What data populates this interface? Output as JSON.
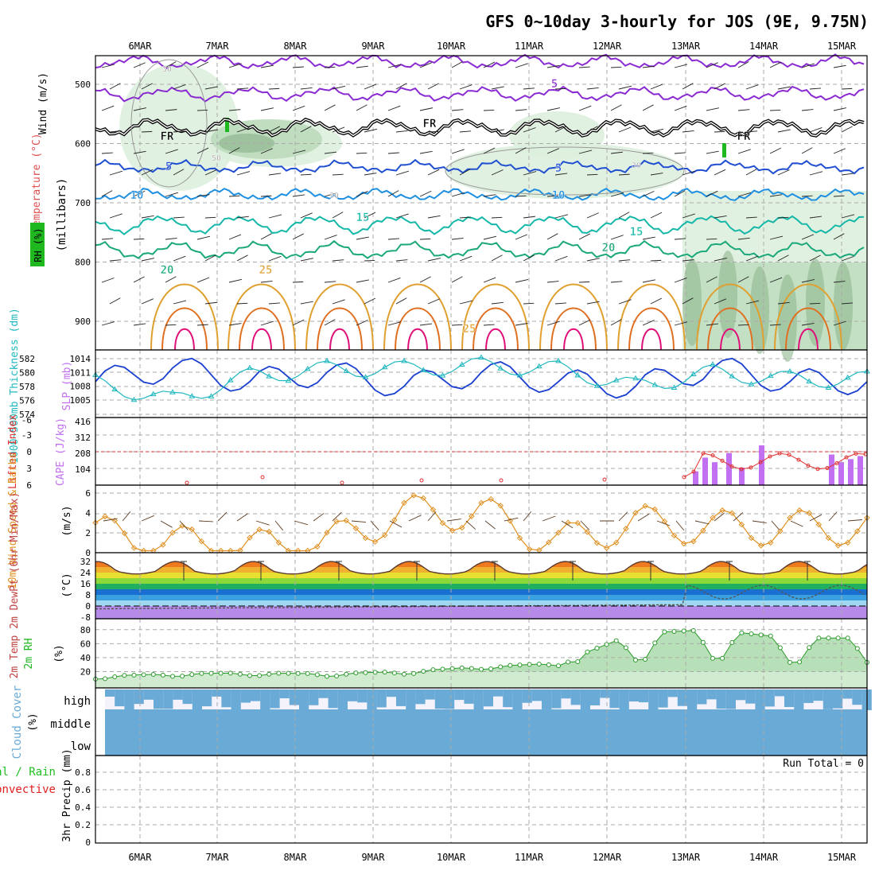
{
  "title": "GFS 0~10day 3-hourly for JOS (9E, 9.75N)",
  "date_labels": [
    "6MAR",
    "7MAR",
    "8MAR",
    "9MAR",
    "10MAR",
    "11MAR",
    "12MAR",
    "13MAR",
    "14MAR",
    "15MAR"
  ],
  "colors": {
    "grid": "#aaaaaa",
    "purple": "#8a2bd2",
    "black": "#000000",
    "blue5": "#1f4fd0",
    "blue10": "#1f8fe0",
    "teal15": "#15b8a8",
    "green20": "#1aa87a",
    "orange25": "#e0a030",
    "orange30": "#e07020",
    "magenta": "#e0107a",
    "rh": "#1fb81f",
    "slp": "#1a3fd0",
    "thick": "#20b8c0",
    "li": "#e03030",
    "cape": "#c070f0",
    "wind": "#e09020",
    "rh2m": "#2a9a2a",
    "cloud": "#6aaad6",
    "precip_total": "#20c020",
    "precip_conv": "#e02020"
  },
  "panels": {
    "upper": {
      "ylabels": {
        "wind": "Wind (m/s)",
        "temp": "Temperature (°C)",
        "rh": "RH (%)",
        "mb": "(millibars)"
      },
      "ticks": [
        "500",
        "600",
        "700",
        "800",
        "900"
      ],
      "contour_labels": [
        {
          "text": "5",
          "key": "purple"
        },
        {
          "text": "FR",
          "key": "black"
        },
        {
          "text": "FR",
          "key": "black"
        },
        {
          "text": "FR",
          "key": "black"
        },
        {
          "text": "5",
          "key": "blue5"
        },
        {
          "text": "5",
          "key": "blue5"
        },
        {
          "text": "10",
          "key": "blue10"
        },
        {
          "text": "10",
          "key": "blue10"
        },
        {
          "text": "15",
          "key": "teal15"
        },
        {
          "text": "15",
          "key": "teal15"
        },
        {
          "text": "20",
          "key": "green20"
        },
        {
          "text": "20",
          "key": "green20"
        },
        {
          "text": "25",
          "key": "orange25"
        },
        {
          "text": "25",
          "key": "orange25"
        },
        {
          "text": "30",
          "key": "grid"
        },
        {
          "text": "50",
          "key": "grid"
        },
        {
          "text": "30",
          "key": "grid"
        },
        {
          "text": "30",
          "key": "grid"
        }
      ]
    },
    "thickness": {
      "ylabel_left": "1000~500mb Thickness (dm)",
      "ylabel_right": "SLP (mb)",
      "left_ticks": [
        "574",
        "576",
        "578",
        "580",
        "582"
      ],
      "right_ticks": [
        "1005",
        "1008",
        "1011",
        "1014"
      ]
    },
    "cape": {
      "ylabel_left": "Lifted Index",
      "ylabel_right": "CAPE (J/kg)",
      "li_ticks": [
        "6",
        "3",
        "0",
        "-3",
        "-6"
      ],
      "cape_ticks": [
        "104",
        "208",
        "312",
        "416"
      ]
    },
    "wind10m": {
      "ylabel": "10m Wind Speed & Barbs",
      "unit": "(m/s)",
      "ticks": [
        "0",
        "2",
        "4",
        "6"
      ]
    },
    "temp2m": {
      "ylabel": "2m Temp 2m DewPt (6hr Min/Max)",
      "unit": "(°C)",
      "ticks": [
        "-8",
        "0",
        "8",
        "16",
        "24",
        "32"
      ]
    },
    "rh2m": {
      "ylabel": "2m RH",
      "unit": "(%)",
      "ticks": [
        "20",
        "40",
        "60",
        "80"
      ]
    },
    "cloud": {
      "ylabel": "Cloud Cover",
      "unit": "(%)",
      "levels": [
        "high",
        "middle",
        "low"
      ]
    },
    "precip": {
      "ylabel_a": "Total / Rain",
      "ylabel_b": "Convective",
      "ylabel_c": "3hr Precip (mm)",
      "ticks": [
        "0",
        "0.2",
        "0.4",
        "0.6",
        "0.8"
      ],
      "run_total": "Run Total = 0"
    }
  },
  "chart_data": [
    {
      "type": "line",
      "title": "1000~500mb Thickness / SLP",
      "x": [
        "6MAR",
        "7MAR",
        "8MAR",
        "9MAR",
        "10MAR",
        "11MAR",
        "12MAR",
        "13MAR",
        "14MAR",
        "15MAR"
      ],
      "series": [
        {
          "name": "SLP (mb)",
          "values": [
            1009,
            1012,
            1009,
            1011,
            1008,
            1011,
            1009,
            1008,
            1012,
            1009
          ]
        },
        {
          "name": "1000~500mb Thickness (dm)",
          "values": [
            578.5,
            576,
            579.5,
            580.5,
            580.5,
            581,
            580.5,
            578,
            580,
            579
          ]
        }
      ]
    },
    {
      "type": "bar",
      "title": "CAPE (J/kg)",
      "categories": [
        "13MAR",
        "13MAR",
        "13MAR",
        "14MAR",
        "14MAR",
        "14MAR",
        "15MAR",
        "15MAR"
      ],
      "values": [
        104,
        208,
        156,
        260,
        312,
        416,
        208,
        156
      ],
      "ylim": [
        0,
        416
      ]
    },
    {
      "type": "line",
      "title": "10m Wind Speed (m/s)",
      "x": [
        "6MAR",
        "7MAR",
        "8MAR",
        "9MAR",
        "10MAR",
        "11MAR",
        "12MAR",
        "13MAR",
        "14MAR",
        "15MAR"
      ],
      "values": [
        2.0,
        1.0,
        0.5,
        1.0,
        4.0,
        4.0,
        1.0,
        3.0,
        2.5,
        2.5
      ],
      "ylim": [
        0,
        6.5
      ]
    },
    {
      "type": "area",
      "title": "2m RH (%)",
      "x": [
        "6MAR",
        "7MAR",
        "8MAR",
        "9MAR",
        "10MAR",
        "11MAR",
        "12MAR",
        "13MAR",
        "14MAR",
        "15MAR"
      ],
      "values": [
        13,
        17,
        18,
        17,
        20,
        27,
        32,
        75,
        80,
        68
      ],
      "ylim": [
        0,
        90
      ]
    }
  ]
}
